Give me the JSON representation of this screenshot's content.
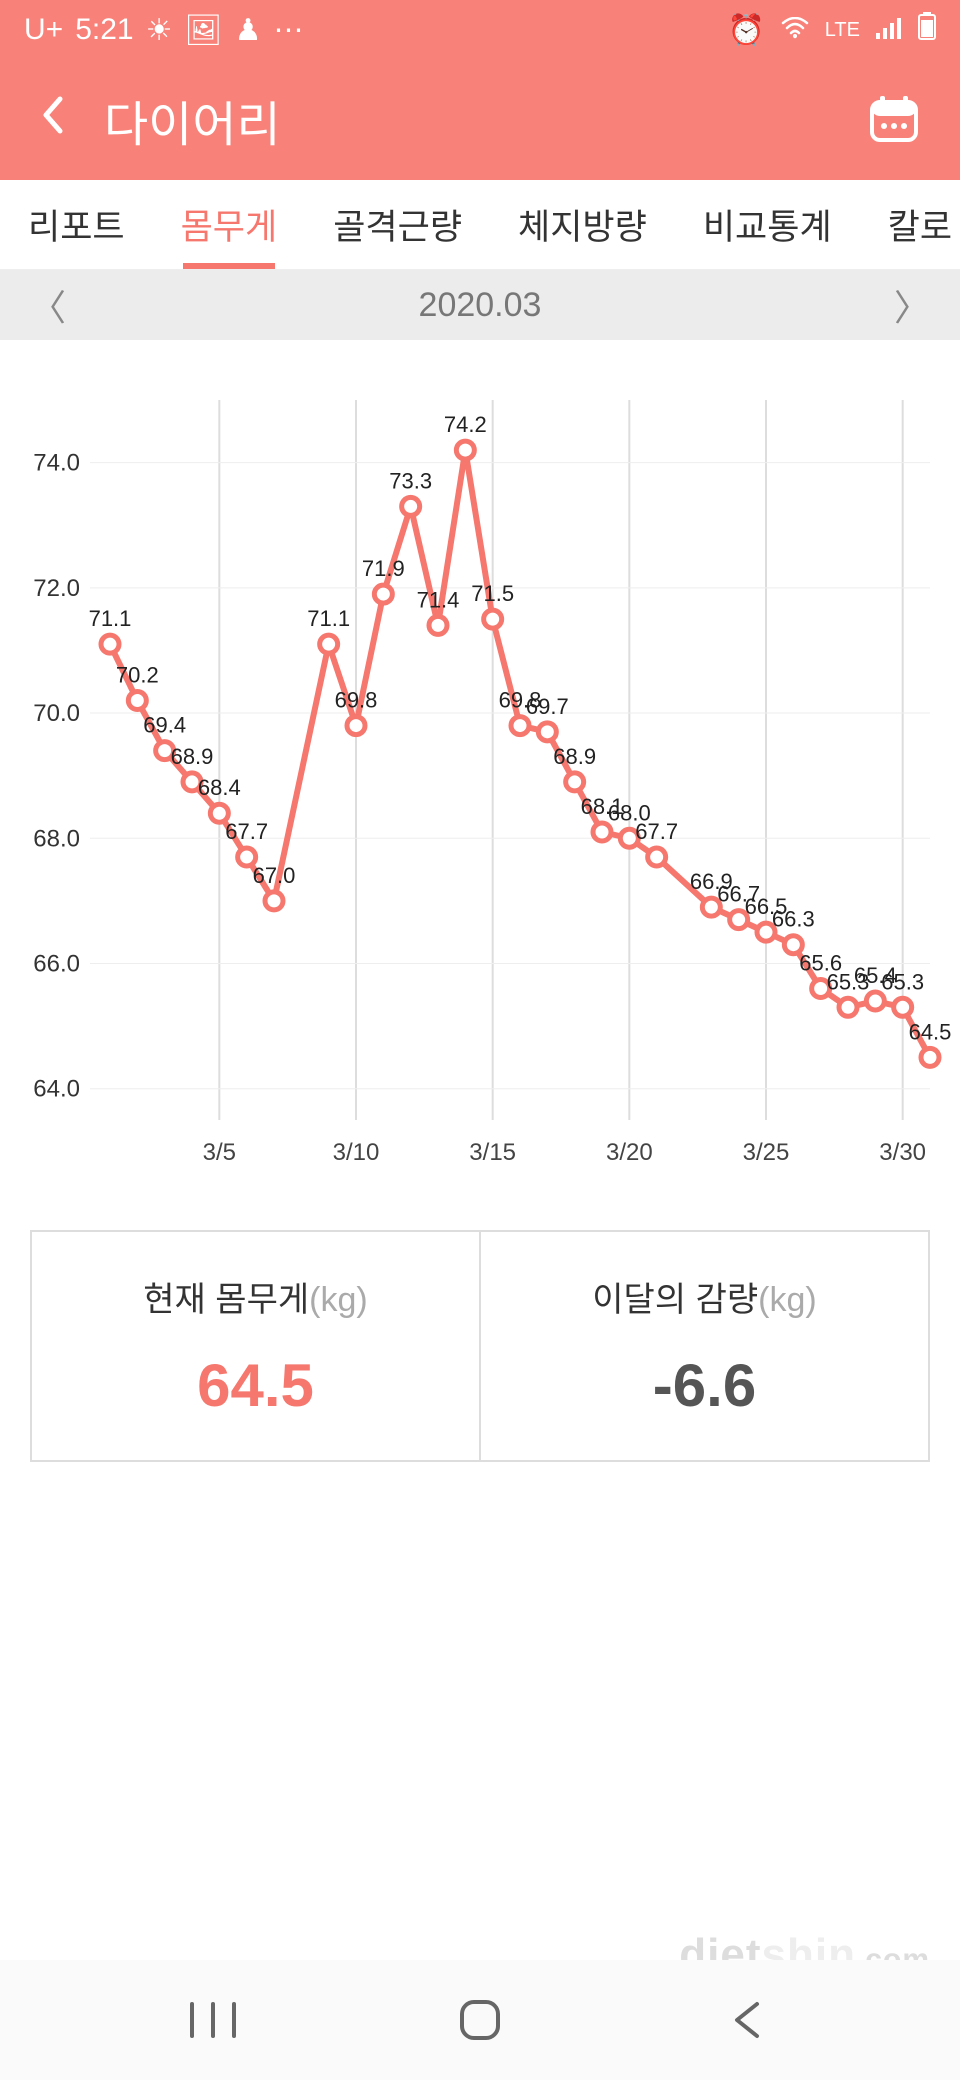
{
  "status_bar": {
    "carrier": "U+",
    "time": "5:21",
    "icons_left": [
      "weather-icon",
      "image-icon",
      "game-icon",
      "more-icon"
    ],
    "icons_right": [
      "alarm-icon",
      "wifi-icon",
      "lte-icon",
      "signal-icon",
      "battery-icon"
    ],
    "lte_text": "LTE"
  },
  "header": {
    "title": "다이어리"
  },
  "tabs": {
    "items": [
      "리포트",
      "몸무게",
      "골격근량",
      "체지방량",
      "비교통계",
      "칼로"
    ],
    "active_index": 1
  },
  "month_selector": {
    "label": "2020.03"
  },
  "chart": {
    "type": "line",
    "line_color": "#f5776d",
    "point_fill": "#ffffff",
    "point_stroke": "#f5776d",
    "grid_color": "#dddddd",
    "background_color": "#ffffff",
    "label_fontsize": 22,
    "axis_fontsize": 24,
    "line_width": 6,
    "point_radius": 9,
    "y_ticks": [
      64.0,
      66.0,
      68.0,
      70.0,
      72.0,
      74.0
    ],
    "ylim": [
      63.5,
      75.0
    ],
    "x_ticks": [
      {
        "day": 5,
        "label": "3/5"
      },
      {
        "day": 10,
        "label": "3/10"
      },
      {
        "day": 15,
        "label": "3/15"
      },
      {
        "day": 20,
        "label": "3/20"
      },
      {
        "day": 25,
        "label": "3/25"
      },
      {
        "day": 30,
        "label": "3/30"
      }
    ],
    "x_range": [
      1,
      31
    ],
    "data": [
      {
        "day": 1,
        "value": 71.1,
        "label": "71.1"
      },
      {
        "day": 2,
        "value": 70.2,
        "label": "70.2"
      },
      {
        "day": 3,
        "value": 69.4,
        "label": "69.4"
      },
      {
        "day": 4,
        "value": 68.9,
        "label": "68.9"
      },
      {
        "day": 5,
        "value": 68.4,
        "label": "68.4"
      },
      {
        "day": 6,
        "value": 67.7,
        "label": "67.7"
      },
      {
        "day": 7,
        "value": 67.0,
        "label": "67.0"
      },
      {
        "day": 9,
        "value": 71.1,
        "label": "71.1"
      },
      {
        "day": 10,
        "value": 69.8,
        "label": "69.8"
      },
      {
        "day": 11,
        "value": 71.9,
        "label": "71.9"
      },
      {
        "day": 12,
        "value": 73.3,
        "label": "73.3"
      },
      {
        "day": 13,
        "value": 71.4,
        "label": "71.4"
      },
      {
        "day": 14,
        "value": 74.2,
        "label": "74.2"
      },
      {
        "day": 15,
        "value": 71.5,
        "label": "71.5"
      },
      {
        "day": 16,
        "value": 69.8,
        "label": "69.8"
      },
      {
        "day": 17,
        "value": 69.7,
        "label": "69.7"
      },
      {
        "day": 18,
        "value": 68.9,
        "label": "68.9"
      },
      {
        "day": 19,
        "value": 68.1,
        "label": "68.1"
      },
      {
        "day": 20,
        "value": 68.0,
        "label": "68.0"
      },
      {
        "day": 21,
        "value": 67.7,
        "label": "67.7"
      },
      {
        "day": 23,
        "value": 66.9,
        "label": "66.9"
      },
      {
        "day": 24,
        "value": 66.7,
        "label": "66.7"
      },
      {
        "day": 25,
        "value": 66.5,
        "label": "66.5"
      },
      {
        "day": 26,
        "value": 66.3,
        "label": "66.3"
      },
      {
        "day": 27,
        "value": 65.6,
        "label": "65.6"
      },
      {
        "day": 28,
        "value": 65.3,
        "label": "65.3"
      },
      {
        "day": 29,
        "value": 65.4,
        "label": "65.4"
      },
      {
        "day": 30,
        "value": 65.3,
        "label": "65.3"
      },
      {
        "day": 31,
        "value": 64.5,
        "label": "64.5"
      }
    ]
  },
  "summary": {
    "current": {
      "label": "현재 몸무게",
      "unit": "(kg)",
      "value": "64.5"
    },
    "monthly": {
      "label": "이달의 감량",
      "unit": "(kg)",
      "value": "-6.6"
    }
  },
  "watermark": {
    "text1": "diet",
    "text2": "shin",
    "text3": ".com"
  }
}
